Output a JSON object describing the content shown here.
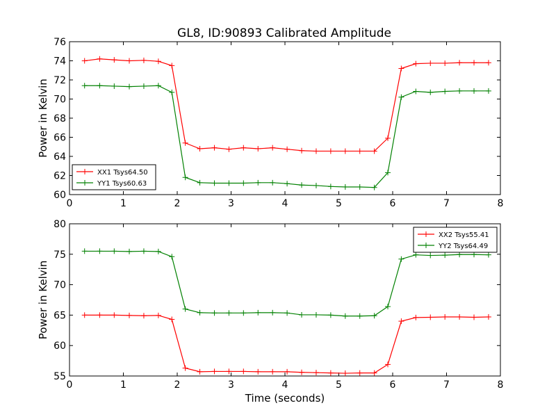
{
  "figure": {
    "title": "GL8, ID:90893 Calibrated Amplitude"
  },
  "colors": {
    "xx": "#ff0000",
    "yy": "#008000",
    "axes": "#000000",
    "background": "#ffffff"
  },
  "chart_data": [
    {
      "type": "line",
      "title": "GL8, ID:90893 Calibrated Amplitude",
      "xlabel": "",
      "ylabel": "Power in Kelvin",
      "xlim": [
        0,
        8
      ],
      "ylim": [
        60,
        76
      ],
      "xticks": [
        "0",
        "1",
        "2",
        "3",
        "4",
        "5",
        "6",
        "7",
        "8"
      ],
      "yticks": [
        "60",
        "62",
        "64",
        "66",
        "68",
        "70",
        "72",
        "74",
        "76"
      ],
      "grid": false,
      "legend_position": "lower-left",
      "x": [
        0.28,
        0.56,
        0.83,
        1.11,
        1.38,
        1.65,
        1.9,
        2.15,
        2.42,
        2.69,
        2.96,
        3.23,
        3.5,
        3.77,
        4.04,
        4.31,
        4.58,
        4.85,
        5.12,
        5.39,
        5.66,
        5.91,
        6.16,
        6.43,
        6.7,
        6.97,
        7.24,
        7.51,
        7.78
      ],
      "series": [
        {
          "name": "XX1 Tsys64.50",
          "color_key": "xx",
          "values": [
            74.0,
            74.2,
            74.1,
            74.0,
            74.05,
            73.95,
            73.5,
            65.4,
            64.8,
            64.9,
            64.75,
            64.9,
            64.8,
            64.9,
            64.75,
            64.6,
            64.55,
            64.55,
            64.55,
            64.55,
            64.55,
            65.9,
            73.2,
            73.7,
            73.75,
            73.75,
            73.8,
            73.8,
            73.8
          ]
        },
        {
          "name": "YY1 Tsys60.63",
          "color_key": "yy",
          "values": [
            71.4,
            71.4,
            71.35,
            71.3,
            71.35,
            71.4,
            70.7,
            61.8,
            61.25,
            61.2,
            61.2,
            61.2,
            61.25,
            61.25,
            61.15,
            61.0,
            60.95,
            60.85,
            60.8,
            60.8,
            60.75,
            62.3,
            70.2,
            70.8,
            70.7,
            70.8,
            70.85,
            70.85,
            70.85
          ]
        }
      ]
    },
    {
      "type": "line",
      "title": "",
      "xlabel": "Time (seconds)",
      "ylabel": "Power in Kelvin",
      "xlim": [
        0,
        8
      ],
      "ylim": [
        55,
        80
      ],
      "xticks": [
        "0",
        "1",
        "2",
        "3",
        "4",
        "5",
        "6",
        "7",
        "8"
      ],
      "yticks": [
        "55",
        "60",
        "65",
        "70",
        "75",
        "80"
      ],
      "grid": false,
      "legend_position": "upper-right",
      "x": [
        0.28,
        0.56,
        0.83,
        1.11,
        1.38,
        1.65,
        1.9,
        2.15,
        2.42,
        2.69,
        2.96,
        3.23,
        3.5,
        3.77,
        4.04,
        4.31,
        4.58,
        4.85,
        5.12,
        5.39,
        5.66,
        5.91,
        6.16,
        6.43,
        6.7,
        6.97,
        7.24,
        7.51,
        7.78
      ],
      "series": [
        {
          "name": "XX2 Tsys55.41",
          "color_key": "xx",
          "values": [
            65.0,
            65.0,
            65.0,
            64.95,
            64.9,
            64.95,
            64.3,
            56.3,
            55.7,
            55.75,
            55.75,
            55.75,
            55.7,
            55.7,
            55.7,
            55.6,
            55.55,
            55.5,
            55.45,
            55.5,
            55.5,
            56.9,
            64.0,
            64.6,
            64.65,
            64.7,
            64.7,
            64.65,
            64.7
          ]
        },
        {
          "name": "YY2 Tsys64.49",
          "color_key": "yy",
          "values": [
            75.5,
            75.5,
            75.5,
            75.45,
            75.5,
            75.45,
            74.6,
            66.0,
            65.4,
            65.35,
            65.35,
            65.35,
            65.4,
            65.4,
            65.35,
            65.05,
            65.05,
            65.0,
            64.85,
            64.85,
            64.9,
            66.4,
            74.2,
            74.9,
            74.8,
            74.85,
            74.95,
            74.95,
            74.9
          ]
        }
      ]
    }
  ]
}
